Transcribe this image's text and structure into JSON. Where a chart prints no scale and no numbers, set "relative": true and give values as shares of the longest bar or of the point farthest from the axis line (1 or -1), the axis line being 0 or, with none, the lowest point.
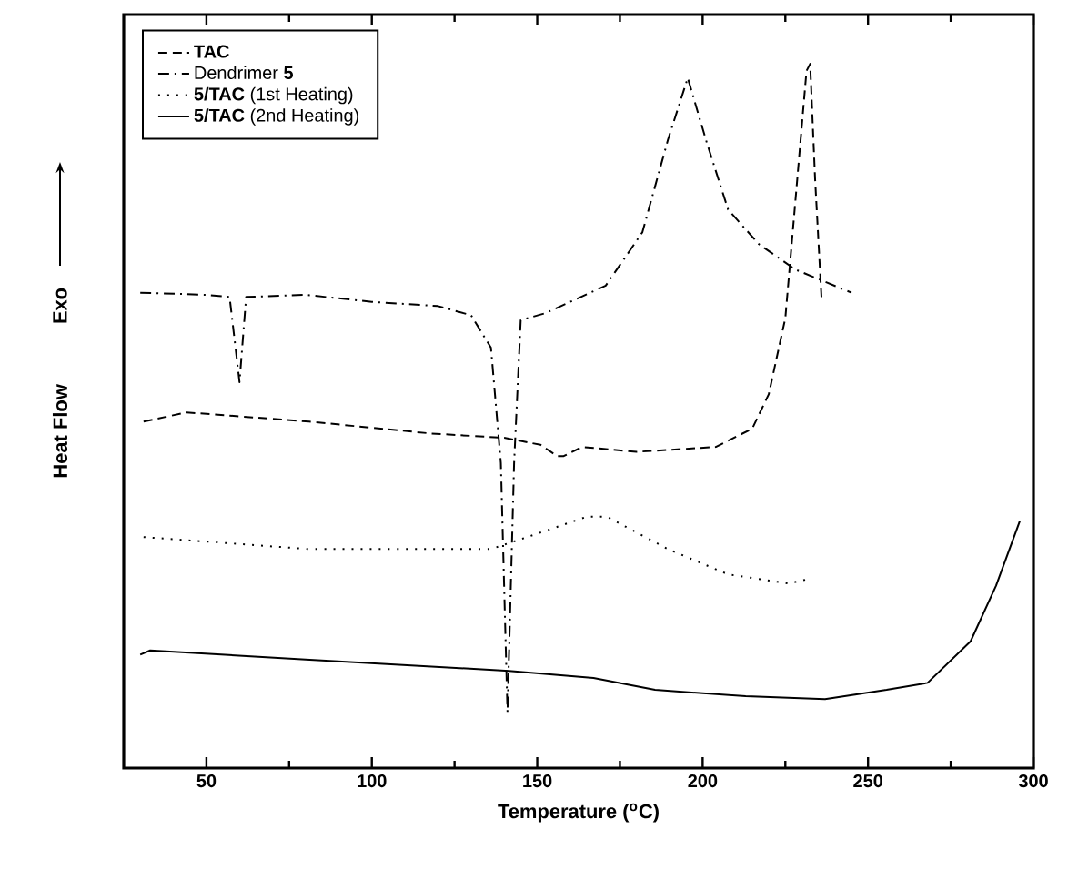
{
  "chart_data": {
    "type": "line",
    "relative": true,
    "xlabel": "Temperature ($^{o}$C)",
    "ylabel": "Heat Flow",
    "annotations": [
      "Exo"
    ],
    "xlim": [
      25,
      300
    ],
    "xticks": [
      50,
      100,
      150,
      200,
      250,
      300
    ],
    "legend": "top left",
    "grid": false,
    "marker": "none",
    "series": [
      {
        "name": "**TAC**",
        "color": "#000000",
        "line_style": "dashed",
        "x": [
          31,
          44,
          81,
          118,
          140,
          151,
          156,
          158,
          163.6,
          180,
          204,
          215,
          220,
          225,
          228.6,
          231.4,
          232.5,
          234,
          236
        ],
        "values": [
          0.492,
          0.505,
          0.492,
          0.475,
          0.469,
          0.459,
          0.443,
          0.443,
          0.456,
          0.449,
          0.456,
          0.482,
          0.531,
          0.639,
          0.836,
          0.99,
          1.0,
          0.836,
          0.662
        ]
      },
      {
        "name": "Dendrimer **5**",
        "color": "#000000",
        "line_style": "dashdot",
        "x": [
          30,
          50,
          57,
          60,
          62,
          80,
          100,
          120,
          130,
          136,
          139,
          141,
          143,
          145,
          152.5,
          170.7,
          181.8,
          189.5,
          195.5,
          201,
          207.7,
          217,
          228,
          245
        ],
        "values": [
          0.675,
          0.672,
          0.669,
          0.548,
          0.669,
          0.672,
          0.662,
          0.656,
          0.643,
          0.597,
          0.433,
          0.079,
          0.433,
          0.636,
          0.646,
          0.685,
          0.761,
          0.892,
          0.98,
          0.892,
          0.793,
          0.744,
          0.708,
          0.675
        ]
      },
      {
        "name": "**5/TAC** (1st Heating)",
        "color": "#000000",
        "line_style": "dotted",
        "x": [
          31,
          81,
          136,
          147,
          165,
          171,
          189.5,
          207.7,
          226,
          232.5
        ],
        "values": [
          0.328,
          0.311,
          0.311,
          0.328,
          0.357,
          0.357,
          0.311,
          0.275,
          0.262,
          0.269
        ]
      },
      {
        "name": "**5/TAC** (2nd Heating)",
        "color": "#000000",
        "line_style": "solid",
        "x": [
          30,
          33,
          80,
          141.5,
          167,
          185.6,
          213,
          237,
          255.6,
          268,
          281,
          288.7,
          295.9
        ],
        "values": [
          0.161,
          0.167,
          0.154,
          0.138,
          0.128,
          0.111,
          0.102,
          0.098,
          0.111,
          0.121,
          0.18,
          0.259,
          0.351
        ]
      }
    ]
  }
}
